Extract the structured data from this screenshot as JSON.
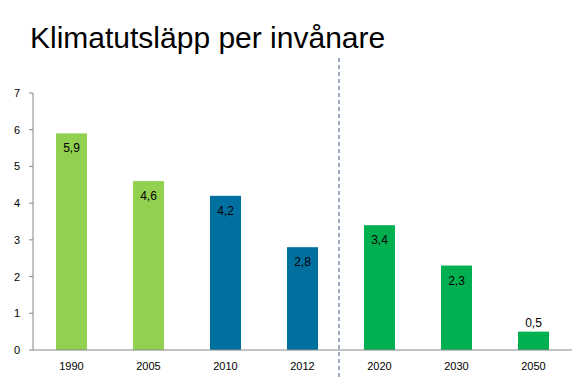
{
  "chart_data": {
    "type": "bar",
    "title": "Klimatutsläpp per invånare",
    "categories": [
      "1990",
      "2005",
      "2010",
      "2012",
      "2020",
      "2030",
      "2050"
    ],
    "values": [
      5.9,
      4.6,
      4.2,
      2.8,
      3.4,
      2.3,
      0.5
    ],
    "value_labels": [
      "5,9",
      "4,6",
      "4,2",
      "2,8",
      "3,4",
      "2,3",
      "0,5"
    ],
    "colors": [
      "#92d050",
      "#92d050",
      "#0070a0",
      "#0070a0",
      "#00b050",
      "#00b050",
      "#00b050"
    ],
    "ylim": [
      0,
      7
    ],
    "yticks": [
      0,
      1,
      2,
      3,
      4,
      5,
      6,
      7
    ],
    "grid": false,
    "data_labels": true
  }
}
